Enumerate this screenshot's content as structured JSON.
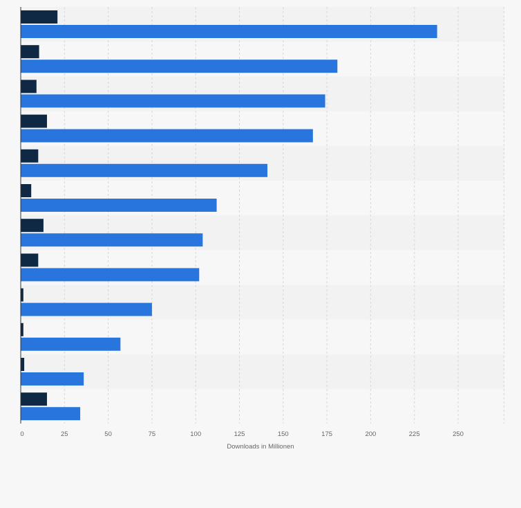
{
  "chart_data": {
    "type": "bar",
    "orientation": "horizontal",
    "categories": [
      "",
      "",
      "",
      "",
      "",
      "",
      "",
      "",
      "",
      "",
      "",
      ""
    ],
    "series": [
      {
        "color": "#0f2843",
        "values": [
          21,
          10.5,
          9,
          15,
          10,
          6,
          13,
          10,
          1.5,
          1.5,
          2,
          15
        ]
      },
      {
        "color": "#2876dd",
        "values": [
          238,
          181,
          174,
          167,
          141,
          112,
          104,
          102,
          75,
          57,
          36,
          34
        ]
      }
    ],
    "xlabel": "Downloads in Millionen",
    "ylabel": "",
    "xlim": [
      0,
      275
    ],
    "xticks": [
      0,
      25,
      50,
      75,
      100,
      125,
      150,
      175,
      200,
      225,
      250
    ],
    "grid": true,
    "legend": "none"
  },
  "colors": {
    "band_dark": "#f2f2f2",
    "band_light": "#f7f7f7",
    "grid": "#d6d6d6",
    "axis": "#333333"
  }
}
